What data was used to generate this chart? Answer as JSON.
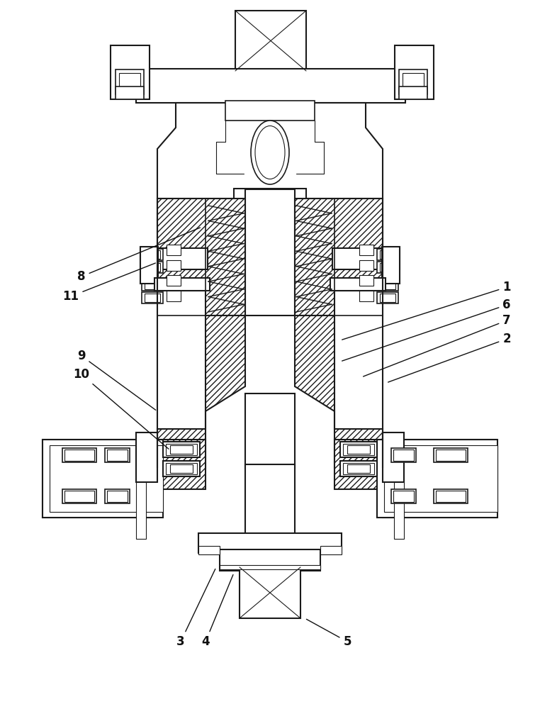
{
  "figsize": [
    7.62,
    10.0
  ],
  "dpi": 100,
  "lc": "#1a1a1a",
  "fc_white": "white",
  "fc_light": "#f0f0f0",
  "fc_hatch": "white",
  "hatch_pat": "////",
  "lw_main": 1.5,
  "lw_thin": 0.8,
  "lw_med": 1.2,
  "label_fs": 12,
  "ann_lw": 1.0
}
